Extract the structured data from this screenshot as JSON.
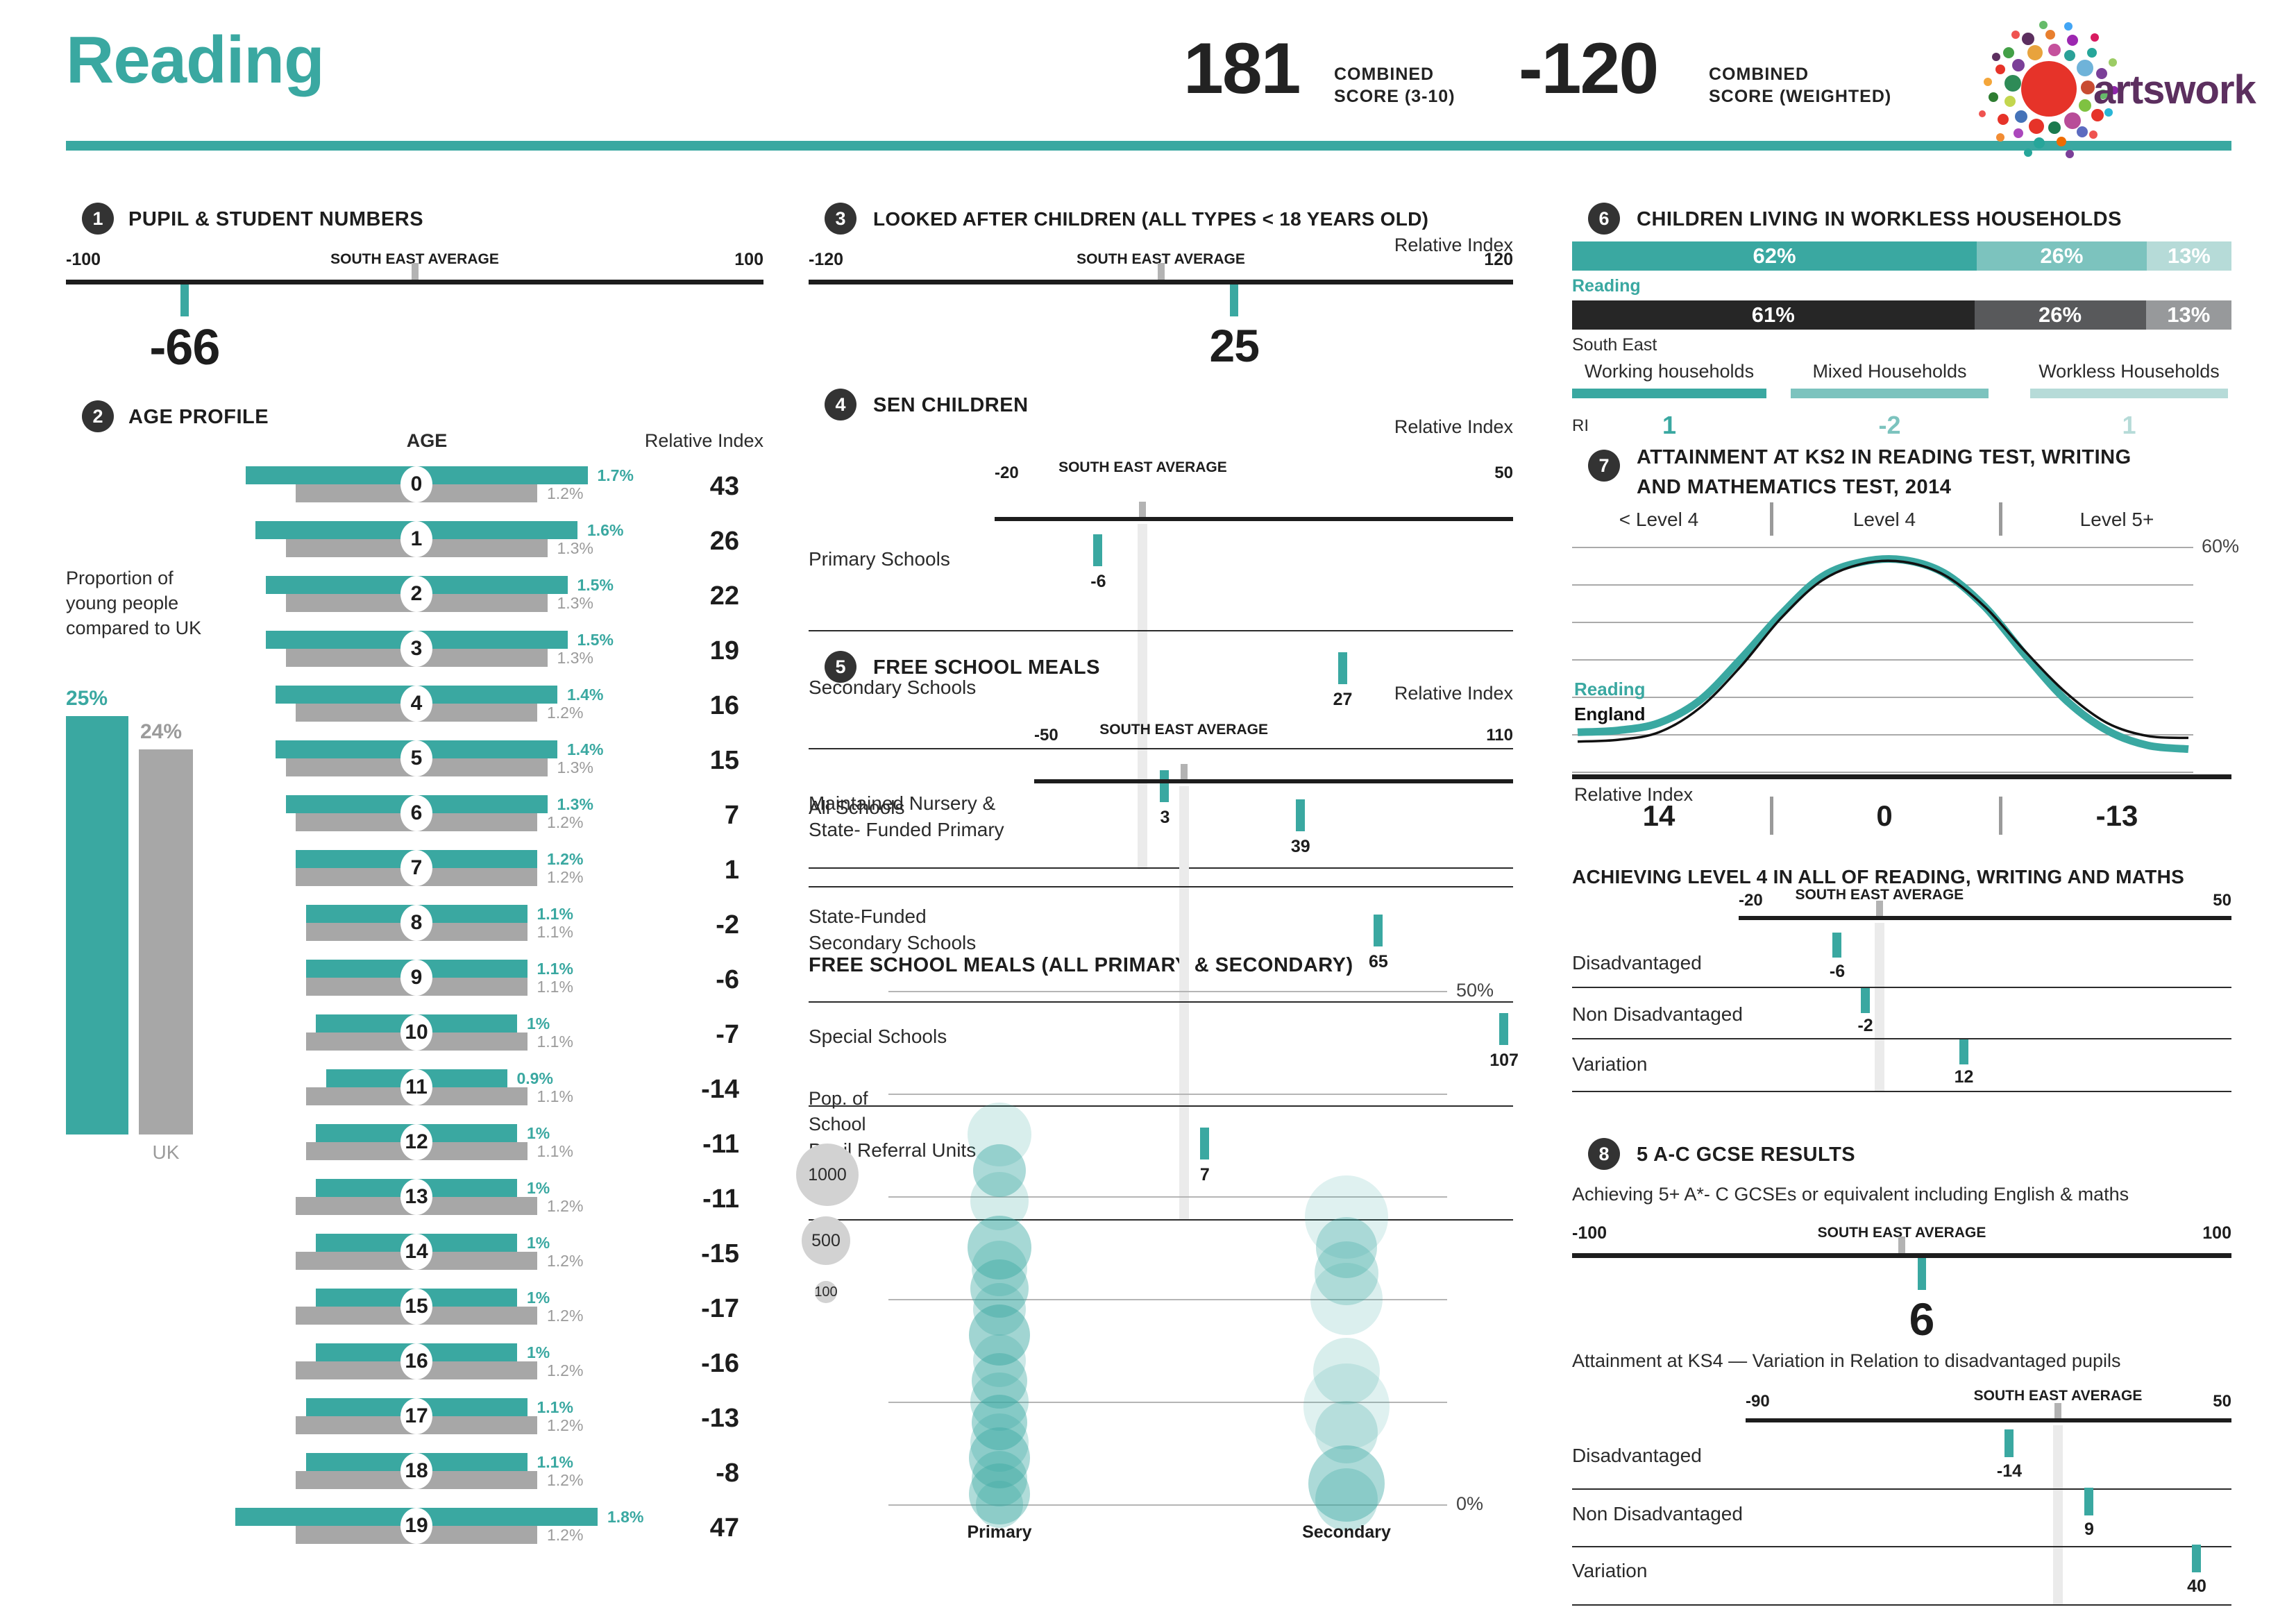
{
  "header": {
    "title": "Reading",
    "score1": {
      "value": "181",
      "label_line1": "COMBINED",
      "label_line2": "SCORE (3-10)"
    },
    "score2": {
      "value": "-120",
      "label_line1": "COMBINED",
      "label_line2": "SCORE (WEIGHTED)"
    },
    "logo_text": "artswork"
  },
  "colors": {
    "teal": "#3aa8a1",
    "teal_mid": "#7cc3be",
    "teal_light": "#b6dbd8",
    "dark": "#1d1d1d",
    "gray_bar": "#a7a7a7",
    "gray_text": "#9b9b9b",
    "se_dark": "#262626",
    "se_mid": "#58595b",
    "se_light": "#97999b",
    "band": "#ebebeb",
    "grid": "#9a9a9a",
    "legend_circle": "#d2d2d2"
  },
  "s1": {
    "num": "1",
    "title": "PUPIL & STUDENT NUMBERS",
    "min": -100,
    "max": 100,
    "min_label": "-100",
    "max_label": "100",
    "sea_label": "SOUTH EAST AVERAGE",
    "value": -66,
    "value_label": "-66"
  },
  "s2": {
    "num": "2",
    "title": "AGE PROFILE",
    "age_header": "AGE",
    "ri_header": "Relative Index",
    "note_lines": [
      "Proportion of",
      "young people",
      "compared to UK"
    ],
    "local_total": "25%",
    "uk_total": "24%",
    "uk_label": "UK",
    "rows": [
      {
        "age": "0",
        "local_v": 1.7,
        "uk_v": 1.2,
        "local": "1.7%",
        "uk": "1.2%",
        "ri": "43"
      },
      {
        "age": "1",
        "local_v": 1.6,
        "uk_v": 1.3,
        "local": "1.6%",
        "uk": "1.3%",
        "ri": "26"
      },
      {
        "age": "2",
        "local_v": 1.5,
        "uk_v": 1.3,
        "local": "1.5%",
        "uk": "1.3%",
        "ri": "22"
      },
      {
        "age": "3",
        "local_v": 1.5,
        "uk_v": 1.3,
        "local": "1.5%",
        "uk": "1.3%",
        "ri": "19"
      },
      {
        "age": "4",
        "local_v": 1.4,
        "uk_v": 1.2,
        "local": "1.4%",
        "uk": "1.2%",
        "ri": "16"
      },
      {
        "age": "5",
        "local_v": 1.4,
        "uk_v": 1.3,
        "local": "1.4%",
        "uk": "1.3%",
        "ri": "15"
      },
      {
        "age": "6",
        "local_v": 1.3,
        "uk_v": 1.2,
        "local": "1.3%",
        "uk": "1.2%",
        "ri": "7"
      },
      {
        "age": "7",
        "local_v": 1.2,
        "uk_v": 1.2,
        "local": "1.2%",
        "uk": "1.2%",
        "ri": "1"
      },
      {
        "age": "8",
        "local_v": 1.1,
        "uk_v": 1.1,
        "local": "1.1%",
        "uk": "1.1%",
        "ri": "-2"
      },
      {
        "age": "9",
        "local_v": 1.1,
        "uk_v": 1.1,
        "local": "1.1%",
        "uk": "1.1%",
        "ri": "-6"
      },
      {
        "age": "10",
        "local_v": 1.0,
        "uk_v": 1.1,
        "local": "1%",
        "uk": "1.1%",
        "ri": "-7"
      },
      {
        "age": "11",
        "local_v": 0.9,
        "uk_v": 1.1,
        "local": "0.9%",
        "uk": "1.1%",
        "ri": "-14"
      },
      {
        "age": "12",
        "local_v": 1.0,
        "uk_v": 1.1,
        "local": "1%",
        "uk": "1.1%",
        "ri": "-11"
      },
      {
        "age": "13",
        "local_v": 1.0,
        "uk_v": 1.2,
        "local": "1%",
        "uk": "1.2%",
        "ri": "-11"
      },
      {
        "age": "14",
        "local_v": 1.0,
        "uk_v": 1.2,
        "local": "1%",
        "uk": "1.2%",
        "ri": "-15"
      },
      {
        "age": "15",
        "local_v": 1.0,
        "uk_v": 1.2,
        "local": "1%",
        "uk": "1.2%",
        "ri": "-17"
      },
      {
        "age": "16",
        "local_v": 1.0,
        "uk_v": 1.2,
        "local": "1%",
        "uk": "1.2%",
        "ri": "-16"
      },
      {
        "age": "17",
        "local_v": 1.1,
        "uk_v": 1.2,
        "local": "1.1%",
        "uk": "1.2%",
        "ri": "-13"
      },
      {
        "age": "18",
        "local_v": 1.1,
        "uk_v": 1.2,
        "local": "1.1%",
        "uk": "1.2%",
        "ri": "-8"
      },
      {
        "age": "19",
        "local_v": 1.8,
        "uk_v": 1.2,
        "local": "1.8%",
        "uk": "1.2%",
        "ri": "47"
      }
    ]
  },
  "s3": {
    "num": "3",
    "title": "LOOKED AFTER CHILDREN (ALL TYPES < 18 YEARS OLD)",
    "ri_label": "Relative Index",
    "min": -120,
    "max": 120,
    "min_label": "-120",
    "max_label": "120",
    "sea_label": "SOUTH EAST AVERAGE",
    "value": 25,
    "value_label": "25"
  },
  "s4": {
    "num": "4",
    "title": "SEN CHILDREN",
    "ri_label": "Relative Index",
    "min": -20,
    "max": 50,
    "min_label": "-20",
    "max_label": "50",
    "sea_label": "SOUTH EAST AVERAGE",
    "rows": [
      {
        "label": [
          "Primary Schools"
        ],
        "value": -6,
        "value_label": "-6"
      },
      {
        "label": [
          "Secondary Schools"
        ],
        "value": 27,
        "value_label": "27"
      },
      {
        "label": [
          "All Schools"
        ],
        "value": 3,
        "value_label": "3"
      }
    ]
  },
  "s5": {
    "num": "5",
    "title": "FREE SCHOOL MEALS",
    "ri_label": "Relative Index",
    "min": -50,
    "max": 110,
    "min_label": "-50",
    "max_label": "110",
    "sea_label": "SOUTH EAST AVERAGE",
    "rows": [
      {
        "label": [
          "Maintained Nursery &",
          "State- Funded Primary"
        ],
        "value": 39,
        "value_label": "39"
      },
      {
        "label": [
          "State-Funded",
          "Secondary Schools"
        ],
        "value": 65,
        "value_label": "65"
      },
      {
        "label": [
          "Special Schools"
        ],
        "value": 107,
        "value_label": "107"
      },
      {
        "label": [
          "Pupil Referral Units"
        ],
        "value": 7,
        "value_label": "7"
      }
    ]
  },
  "bubble": {
    "title": "FREE SCHOOL MEALS (ALL PRIMARY & SECONDARY)",
    "top_label": "50%",
    "bottom_label": "0%",
    "legend_title_lines": [
      "Pop. of",
      "School"
    ],
    "legend": [
      {
        "label": "1000"
      },
      {
        "label": "500"
      },
      {
        "label": "100"
      }
    ],
    "columns": [
      "Primary",
      "Secondary"
    ],
    "points": [
      {
        "c": 0,
        "p": 36,
        "r": 46,
        "o": 0.2
      },
      {
        "c": 0,
        "p": 32.5,
        "r": 38,
        "o": 0.42
      },
      {
        "c": 0,
        "p": 29.5,
        "r": 42,
        "o": 0.22
      },
      {
        "c": 0,
        "p": 25,
        "r": 46,
        "o": 0.45
      },
      {
        "c": 0,
        "p": 23,
        "r": 40,
        "o": 0.28
      },
      {
        "c": 0,
        "p": 21,
        "r": 42,
        "o": 0.4
      },
      {
        "c": 0,
        "p": 19,
        "r": 38,
        "o": 0.3
      },
      {
        "c": 0,
        "p": 16.5,
        "r": 44,
        "o": 0.48
      },
      {
        "c": 0,
        "p": 14,
        "r": 38,
        "o": 0.26
      },
      {
        "c": 0,
        "p": 12,
        "r": 40,
        "o": 0.4
      },
      {
        "c": 0,
        "p": 10,
        "r": 42,
        "o": 0.3
      },
      {
        "c": 0,
        "p": 8,
        "r": 40,
        "o": 0.45
      },
      {
        "c": 0,
        "p": 6,
        "r": 42,
        "o": 0.28
      },
      {
        "c": 0,
        "p": 4.5,
        "r": 44,
        "o": 0.42
      },
      {
        "c": 0,
        "p": 2.5,
        "r": 40,
        "o": 0.35
      },
      {
        "c": 0,
        "p": 1,
        "r": 44,
        "o": 0.4
      },
      {
        "c": 0,
        "p": 0,
        "r": 34,
        "o": 0.3
      },
      {
        "c": 1,
        "p": 28,
        "r": 60,
        "o": 0.16
      },
      {
        "c": 1,
        "p": 25,
        "r": 44,
        "o": 0.32
      },
      {
        "c": 1,
        "p": 22.5,
        "r": 46,
        "o": 0.28
      },
      {
        "c": 1,
        "p": 20,
        "r": 52,
        "o": 0.18
      },
      {
        "c": 1,
        "p": 13,
        "r": 48,
        "o": 0.2
      },
      {
        "c": 1,
        "p": 9.5,
        "r": 62,
        "o": 0.16
      },
      {
        "c": 1,
        "p": 7,
        "r": 45,
        "o": 0.25
      },
      {
        "c": 1,
        "p": 2,
        "r": 55,
        "o": 0.42
      },
      {
        "c": 1,
        "p": 0.5,
        "r": 45,
        "o": 0.3
      }
    ]
  },
  "s6": {
    "num": "6",
    "title": "CHILDREN LIVING IN WORKLESS HOUSEHOLDS",
    "ri_label": "RI",
    "bars": [
      {
        "label": "Reading",
        "segments": [
          {
            "text": "62%",
            "v": 62
          },
          {
            "text": "26%",
            "v": 26
          },
          {
            "text": "13%",
            "v": 13
          }
        ]
      },
      {
        "label": "South East",
        "segments": [
          {
            "text": "61%",
            "v": 61
          },
          {
            "text": "26%",
            "v": 26
          },
          {
            "text": "13%",
            "v": 13
          }
        ]
      }
    ],
    "legend": [
      {
        "label": "Working households",
        "ri": "1"
      },
      {
        "label": "Mixed Households",
        "ri": "-2"
      },
      {
        "label": "Workless Households",
        "ri": "1"
      }
    ]
  },
  "s7": {
    "num": "7",
    "title_lines": [
      "ATTAINMENT AT KS2 IN READING TEST, WRITING",
      "AND MATHEMATICS TEST, 2014"
    ],
    "bands": [
      "< Level 4",
      "Level 4",
      "Level 5+"
    ],
    "ymax_label": "60%",
    "series": [
      {
        "name": "Reading",
        "values": [
          10.5,
          11,
          13,
          19,
          30,
          42,
          52,
          56,
          56.5,
          53,
          44,
          31,
          19,
          11,
          7,
          6
        ]
      },
      {
        "name": "England",
        "values": [
          8,
          8.5,
          10.5,
          17,
          28,
          41,
          51,
          55.5,
          56,
          52.5,
          44,
          32,
          21,
          13,
          9.5,
          9
        ]
      }
    ],
    "ri_label": "Relative Index",
    "ri_values": [
      "14",
      "0",
      "-13"
    ],
    "sub_title": "ACHIEVING LEVEL 4 IN ALL OF READING, WRITING AND MATHS",
    "scale": {
      "min": -20,
      "max": 50,
      "min_label": "-20",
      "max_label": "50",
      "sea_label": "SOUTH EAST AVERAGE"
    },
    "rows": [
      {
        "label": [
          "Disadvantaged"
        ],
        "value": -6,
        "value_label": "-6"
      },
      {
        "label": [
          "Non Disadvantaged"
        ],
        "value": -2,
        "value_label": "-2"
      },
      {
        "label": [
          "Variation"
        ],
        "value": 12,
        "value_label": "12"
      }
    ]
  },
  "s8": {
    "num": "8",
    "title": "5 A-C GCSE RESULTS",
    "subtitle": "Achieving 5+ A*- C GCSEs or equivalent including English & maths",
    "min": -100,
    "max": 100,
    "min_label": "-100",
    "max_label": "100",
    "sea_label": "SOUTH EAST AVERAGE",
    "value": 6,
    "value_label": "6",
    "ks4_title": "Attainment at KS4 — Variation in Relation to disadvantaged pupils",
    "ks4_scale": {
      "min": -90,
      "max": 50,
      "min_label": "-90",
      "max_label": "50",
      "sea_label": "SOUTH EAST AVERAGE"
    },
    "ks4_rows": [
      {
        "label": [
          "Disadvantaged"
        ],
        "value": -14,
        "value_label": "-14"
      },
      {
        "label": [
          "Non Disadvantaged"
        ],
        "value": 9,
        "value_label": "9"
      },
      {
        "label": [
          "Variation"
        ],
        "value": 40,
        "value_label": "40"
      }
    ]
  },
  "chart_data": [
    {
      "id": "1",
      "type": "bar",
      "title": "PUPIL & STUDENT NUMBERS",
      "axis_range": [
        -100,
        100
      ],
      "reference": "SOUTH EAST AVERAGE = 0",
      "values": [
        -66
      ]
    },
    {
      "id": "2",
      "type": "bar",
      "title": "AGE PROFILE",
      "categories": [
        "0",
        "1",
        "2",
        "3",
        "4",
        "5",
        "6",
        "7",
        "8",
        "9",
        "10",
        "11",
        "12",
        "13",
        "14",
        "15",
        "16",
        "17",
        "18",
        "19"
      ],
      "series": [
        {
          "name": "Reading proportion %",
          "values": [
            1.7,
            1.6,
            1.5,
            1.5,
            1.4,
            1.4,
            1.3,
            1.2,
            1.1,
            1.1,
            1.0,
            0.9,
            1.0,
            1.0,
            1.0,
            1.0,
            1.0,
            1.1,
            1.1,
            1.8
          ]
        },
        {
          "name": "UK proportion %",
          "values": [
            1.2,
            1.3,
            1.3,
            1.3,
            1.2,
            1.3,
            1.2,
            1.2,
            1.1,
            1.1,
            1.1,
            1.1,
            1.1,
            1.2,
            1.2,
            1.2,
            1.2,
            1.2,
            1.2,
            1.2
          ]
        },
        {
          "name": "Relative Index",
          "values": [
            43,
            26,
            22,
            19,
            16,
            15,
            7,
            1,
            -2,
            -6,
            -7,
            -14,
            -11,
            -11,
            -15,
            -17,
            -16,
            -13,
            -8,
            47
          ]
        }
      ],
      "totals": {
        "Reading": 25,
        "UK": 24
      }
    },
    {
      "id": "3",
      "type": "bar",
      "title": "LOOKED AFTER CHILDREN (ALL TYPES < 18 YEARS OLD)",
      "axis_range": [
        -120,
        120
      ],
      "reference": "SOUTH EAST AVERAGE = 0",
      "values": [
        25
      ]
    },
    {
      "id": "4",
      "type": "bar",
      "title": "SEN CHILDREN",
      "axis_range": [
        -20,
        50
      ],
      "categories": [
        "Primary Schools",
        "Secondary Schools",
        "All Schools"
      ],
      "values": [
        -6,
        27,
        3
      ]
    },
    {
      "id": "5",
      "type": "bar",
      "title": "FREE SCHOOL MEALS",
      "axis_range": [
        -50,
        110
      ],
      "categories": [
        "Maintained Nursery & State- Funded Primary",
        "State-Funded Secondary Schools",
        "Special Schools",
        "Pupil Referral Units"
      ],
      "values": [
        39,
        65,
        107,
        7
      ]
    },
    {
      "id": "5b",
      "type": "scatter",
      "title": "FREE SCHOOL MEALS (ALL PRIMARY & SECONDARY)",
      "categories": [
        "Primary",
        "Secondary"
      ],
      "ylim": [
        0,
        50
      ],
      "size_legend": [
        1000,
        500,
        100
      ],
      "points_pct_primary": [
        36,
        32.5,
        29.5,
        25,
        23,
        21,
        19,
        16.5,
        14,
        12,
        10,
        8,
        6,
        4.5,
        2.5,
        1,
        0
      ],
      "points_pct_secondary": [
        28,
        25,
        22.5,
        20,
        13,
        9.5,
        7,
        2,
        0.5
      ]
    },
    {
      "id": "6",
      "type": "bar",
      "title": "CHILDREN LIVING IN WORKLESS HOUSEHOLDS",
      "categories": [
        "Reading",
        "South East"
      ],
      "series": [
        {
          "name": "Working households",
          "values": [
            62,
            61
          ],
          "relative_index": 1
        },
        {
          "name": "Mixed Households",
          "values": [
            26,
            26
          ],
          "relative_index": -2
        },
        {
          "name": "Workless Households",
          "values": [
            13,
            13
          ],
          "relative_index": 1
        }
      ]
    },
    {
      "id": "7",
      "type": "line",
      "title": "ATTAINMENT AT KS2 IN READING TEST, WRITING AND MATHEMATICS TEST, 2014",
      "bands": [
        "< Level 4",
        "Level 4",
        "Level 5+"
      ],
      "ylim": [
        0,
        60
      ],
      "relative_index": [
        14,
        0,
        -13
      ],
      "series": [
        {
          "name": "Reading",
          "values": [
            10.5,
            11,
            13,
            19,
            30,
            42,
            52,
            56,
            56.5,
            53,
            44,
            31,
            19,
            11,
            7,
            6
          ]
        },
        {
          "name": "England",
          "values": [
            8,
            8.5,
            10.5,
            17,
            28,
            41,
            51,
            55.5,
            56,
            52.5,
            44,
            32,
            21,
            13,
            9.5,
            9
          ]
        }
      ]
    },
    {
      "id": "7b",
      "type": "bar",
      "title": "ACHIEVING LEVEL 4 IN ALL OF READING, WRITING AND MATHS",
      "axis_range": [
        -20,
        50
      ],
      "categories": [
        "Disadvantaged",
        "Non Disadvantaged",
        "Variation"
      ],
      "values": [
        -6,
        -2,
        12
      ]
    },
    {
      "id": "8",
      "type": "bar",
      "title": "5 A-C GCSE RESULTS",
      "axis_range": [
        -100,
        100
      ],
      "values": [
        6
      ]
    },
    {
      "id": "8b",
      "type": "bar",
      "title": "Attainment at KS4 — Variation in Relation to disadvantaged pupils",
      "axis_range": [
        -90,
        50
      ],
      "categories": [
        "Disadvantaged",
        "Non Disadvantaged",
        "Variation"
      ],
      "values": [
        -14,
        9,
        40
      ]
    }
  ]
}
